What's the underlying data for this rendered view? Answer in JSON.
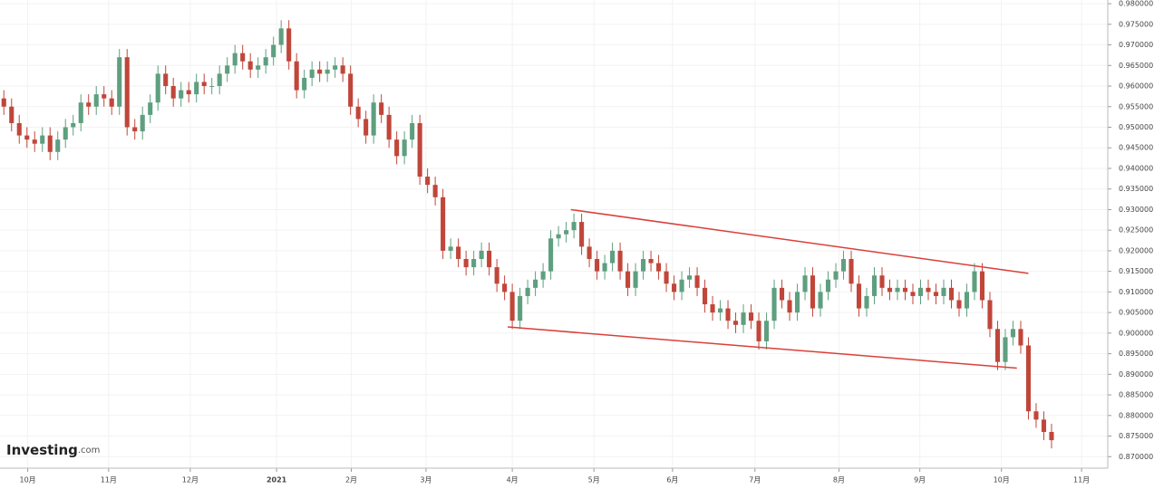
{
  "chart_data": {
    "type": "candlestick",
    "up_color": "#5e9f7f",
    "down_color": "#c0463a",
    "grid": true,
    "xlim": [
      -0.5,
      143.3
    ],
    "ylim": [
      0.8672,
      0.9809
    ],
    "xticks": [
      {
        "value": 3.1,
        "label": "10月"
      },
      {
        "value": 13.6,
        "label": "11月"
      },
      {
        "value": 24.2,
        "label": "12月"
      },
      {
        "value": 35.4,
        "label": "2021"
      },
      {
        "value": 45.1,
        "label": "2月"
      },
      {
        "value": 54.8,
        "label": "3月"
      },
      {
        "value": 66,
        "label": "4月"
      },
      {
        "value": 76.6,
        "label": "5月"
      },
      {
        "value": 86.8,
        "label": "6月"
      },
      {
        "value": 97.5,
        "label": "7月"
      },
      {
        "value": 108.4,
        "label": "8月"
      },
      {
        "value": 118.9,
        "label": "9月"
      },
      {
        "value": 129.5,
        "label": "10月"
      },
      {
        "value": 139.9,
        "label": "11月"
      }
    ],
    "yticks": [
      {
        "value": 0.87,
        "label": "0.870000"
      },
      {
        "value": 0.875,
        "label": "0.875000"
      },
      {
        "value": 0.88,
        "label": "0.880000"
      },
      {
        "value": 0.885,
        "label": "0.885000"
      },
      {
        "value": 0.89,
        "label": "0.890000"
      },
      {
        "value": 0.895,
        "label": "0.895000"
      },
      {
        "value": 0.9,
        "label": "0.900000"
      },
      {
        "value": 0.905,
        "label": "0.905000"
      },
      {
        "value": 0.91,
        "label": "0.910000"
      },
      {
        "value": 0.915,
        "label": "0.915000"
      },
      {
        "value": 0.92,
        "label": "0.920000"
      },
      {
        "value": 0.925,
        "label": "0.925000"
      },
      {
        "value": 0.93,
        "label": "0.930000"
      },
      {
        "value": 0.935,
        "label": "0.935000"
      },
      {
        "value": 0.94,
        "label": "0.940000"
      },
      {
        "value": 0.945,
        "label": "0.945000"
      },
      {
        "value": 0.95,
        "label": "0.950000"
      },
      {
        "value": 0.955,
        "label": "0.955000"
      },
      {
        "value": 0.96,
        "label": "0.960000"
      },
      {
        "value": 0.965,
        "label": "0.965000"
      },
      {
        "value": 0.97,
        "label": "0.970000"
      },
      {
        "value": 0.975,
        "label": "0.975000"
      },
      {
        "value": 0.98,
        "label": "0.980000"
      }
    ],
    "open": [
      0.957,
      0.955,
      0.951,
      0.948,
      0.947,
      0.946,
      0.948,
      0.944,
      0.947,
      0.95,
      0.951,
      0.956,
      0.955,
      0.958,
      0.957,
      0.955,
      0.967,
      0.95,
      0.949,
      0.953,
      0.956,
      0.963,
      0.96,
      0.957,
      0.959,
      0.958,
      0.961,
      0.96,
      0.96,
      0.963,
      0.965,
      0.968,
      0.966,
      0.964,
      0.965,
      0.967,
      0.97,
      0.974,
      0.966,
      0.959,
      0.962,
      0.964,
      0.963,
      0.964,
      0.965,
      0.963,
      0.955,
      0.952,
      0.948,
      0.956,
      0.953,
      0.947,
      0.943,
      0.947,
      0.951,
      0.938,
      0.936,
      0.933,
      0.92,
      0.921,
      0.918,
      0.916,
      0.918,
      0.92,
      0.916,
      0.912,
      0.91,
      0.903,
      0.909,
      0.911,
      0.913,
      0.915,
      0.923,
      0.924,
      0.925,
      0.927,
      0.921,
      0.918,
      0.915,
      0.917,
      0.92,
      0.915,
      0.911,
      0.915,
      0.918,
      0.917,
      0.915,
      0.912,
      0.91,
      0.913,
      0.914,
      0.911,
      0.907,
      0.905,
      0.906,
      0.903,
      0.902,
      0.905,
      0.903,
      0.898,
      0.903,
      0.911,
      0.908,
      0.905,
      0.91,
      0.914,
      0.906,
      0.91,
      0.913,
      0.915,
      0.918,
      0.912,
      0.906,
      0.909,
      0.914,
      0.911,
      0.91,
      0.911,
      0.91,
      0.909,
      0.911,
      0.91,
      0.909,
      0.911,
      0.908,
      0.906,
      0.91,
      0.915,
      0.908,
      0.901,
      0.893,
      0.899,
      0.901,
      0.897,
      0.881,
      0.879,
      0.876
    ],
    "high": [
      0.959,
      0.957,
      0.953,
      0.95,
      0.949,
      0.95,
      0.95,
      0.949,
      0.952,
      0.953,
      0.958,
      0.958,
      0.96,
      0.96,
      0.959,
      0.969,
      0.969,
      0.952,
      0.955,
      0.958,
      0.965,
      0.965,
      0.962,
      0.961,
      0.961,
      0.963,
      0.963,
      0.962,
      0.965,
      0.967,
      0.97,
      0.97,
      0.968,
      0.967,
      0.969,
      0.972,
      0.976,
      0.976,
      0.968,
      0.964,
      0.966,
      0.966,
      0.966,
      0.967,
      0.967,
      0.965,
      0.957,
      0.954,
      0.958,
      0.958,
      0.955,
      0.949,
      0.949,
      0.953,
      0.953,
      0.94,
      0.938,
      0.935,
      0.923,
      0.923,
      0.92,
      0.92,
      0.922,
      0.922,
      0.918,
      0.914,
      0.912,
      0.911,
      0.913,
      0.915,
      0.917,
      0.925,
      0.926,
      0.927,
      0.929,
      0.929,
      0.923,
      0.92,
      0.919,
      0.922,
      0.922,
      0.917,
      0.917,
      0.92,
      0.92,
      0.919,
      0.917,
      0.914,
      0.915,
      0.916,
      0.916,
      0.913,
      0.909,
      0.908,
      0.908,
      0.905,
      0.907,
      0.907,
      0.905,
      0.905,
      0.913,
      0.913,
      0.91,
      0.912,
      0.916,
      0.916,
      0.912,
      0.915,
      0.917,
      0.92,
      0.92,
      0.914,
      0.911,
      0.916,
      0.916,
      0.913,
      0.913,
      0.913,
      0.912,
      0.913,
      0.913,
      0.912,
      0.913,
      0.913,
      0.91,
      0.912,
      0.917,
      0.917,
      0.91,
      0.903,
      0.901,
      0.903,
      0.903,
      0.899,
      0.883,
      0.881,
      0.878
    ],
    "low": [
      0.953,
      0.949,
      0.946,
      0.945,
      0.944,
      0.944,
      0.942,
      0.942,
      0.945,
      0.948,
      0.949,
      0.953,
      0.953,
      0.955,
      0.953,
      0.953,
      0.948,
      0.947,
      0.947,
      0.951,
      0.954,
      0.958,
      0.955,
      0.955,
      0.956,
      0.956,
      0.958,
      0.958,
      0.958,
      0.961,
      0.963,
      0.964,
      0.962,
      0.962,
      0.963,
      0.965,
      0.968,
      0.964,
      0.957,
      0.957,
      0.96,
      0.961,
      0.961,
      0.962,
      0.961,
      0.953,
      0.95,
      0.946,
      0.946,
      0.951,
      0.945,
      0.941,
      0.941,
      0.945,
      0.936,
      0.934,
      0.931,
      0.918,
      0.918,
      0.916,
      0.914,
      0.914,
      0.916,
      0.914,
      0.91,
      0.908,
      0.901,
      0.901,
      0.907,
      0.909,
      0.911,
      0.913,
      0.921,
      0.922,
      0.923,
      0.919,
      0.916,
      0.913,
      0.913,
      0.915,
      0.913,
      0.909,
      0.909,
      0.913,
      0.915,
      0.913,
      0.91,
      0.908,
      0.908,
      0.911,
      0.909,
      0.905,
      0.903,
      0.903,
      0.901,
      0.9,
      0.9,
      0.901,
      0.896,
      0.896,
      0.901,
      0.906,
      0.903,
      0.903,
      0.908,
      0.904,
      0.904,
      0.908,
      0.911,
      0.913,
      0.91,
      0.904,
      0.904,
      0.907,
      0.909,
      0.908,
      0.908,
      0.908,
      0.907,
      0.907,
      0.908,
      0.907,
      0.907,
      0.906,
      0.904,
      0.904,
      0.908,
      0.906,
      0.899,
      0.891,
      0.891,
      0.897,
      0.895,
      0.879,
      0.877,
      0.874,
      0.872
    ],
    "close": [
      0.955,
      0.951,
      0.948,
      0.947,
      0.946,
      0.948,
      0.944,
      0.947,
      0.95,
      0.951,
      0.956,
      0.955,
      0.958,
      0.957,
      0.955,
      0.967,
      0.95,
      0.949,
      0.953,
      0.956,
      0.963,
      0.96,
      0.957,
      0.959,
      0.958,
      0.961,
      0.96,
      0.96,
      0.963,
      0.965,
      0.968,
      0.966,
      0.964,
      0.965,
      0.967,
      0.97,
      0.974,
      0.966,
      0.959,
      0.962,
      0.964,
      0.963,
      0.964,
      0.965,
      0.963,
      0.955,
      0.952,
      0.948,
      0.956,
      0.953,
      0.947,
      0.943,
      0.947,
      0.951,
      0.938,
      0.936,
      0.933,
      0.92,
      0.921,
      0.918,
      0.916,
      0.918,
      0.92,
      0.916,
      0.912,
      0.91,
      0.903,
      0.909,
      0.911,
      0.913,
      0.915,
      0.923,
      0.924,
      0.925,
      0.927,
      0.921,
      0.918,
      0.915,
      0.917,
      0.92,
      0.915,
      0.911,
      0.915,
      0.918,
      0.917,
      0.915,
      0.912,
      0.91,
      0.913,
      0.914,
      0.911,
      0.907,
      0.905,
      0.906,
      0.903,
      0.902,
      0.905,
      0.903,
      0.898,
      0.903,
      0.911,
      0.908,
      0.905,
      0.91,
      0.914,
      0.906,
      0.91,
      0.913,
      0.915,
      0.918,
      0.912,
      0.906,
      0.909,
      0.914,
      0.911,
      0.91,
      0.911,
      0.91,
      0.909,
      0.911,
      0.91,
      0.909,
      0.911,
      0.908,
      0.906,
      0.91,
      0.915,
      0.908,
      0.901,
      0.893,
      0.899,
      0.901,
      0.897,
      0.881,
      0.879,
      0.876,
      0.874
    ],
    "trendlines": [
      {
        "color": "#d9403a",
        "x": [
          73.6,
          133
        ],
        "y": [
          0.93,
          0.9145
        ]
      },
      {
        "color": "#d9403a",
        "x": [
          65.4,
          131.5
        ],
        "y": [
          0.9015,
          0.8915
        ]
      }
    ],
    "watermark": {
      "brand": "Investing",
      "suffix": ".com"
    }
  }
}
